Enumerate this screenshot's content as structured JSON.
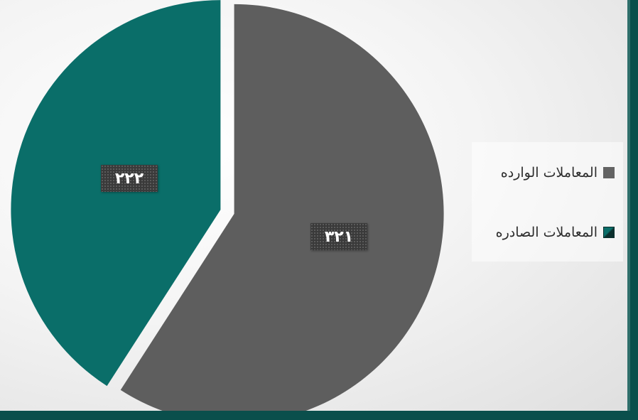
{
  "chart_data": {
    "type": "pie",
    "slices": [
      {
        "label": "المعاملات الوارده",
        "value": 321,
        "display": "٣٢١",
        "color": "#5e5e5e"
      },
      {
        "label": "المعاملات الصادره",
        "value": 222,
        "display": "٢٢٢",
        "color": "#0a6e69"
      }
    ],
    "legend_position": "right"
  },
  "legend": {
    "incoming": "المعاملات الوارده",
    "outgoing": "المعاملات الصادره"
  },
  "labels": {
    "incoming_value": "٣٢١",
    "outgoing_value": "٢٢٢"
  }
}
